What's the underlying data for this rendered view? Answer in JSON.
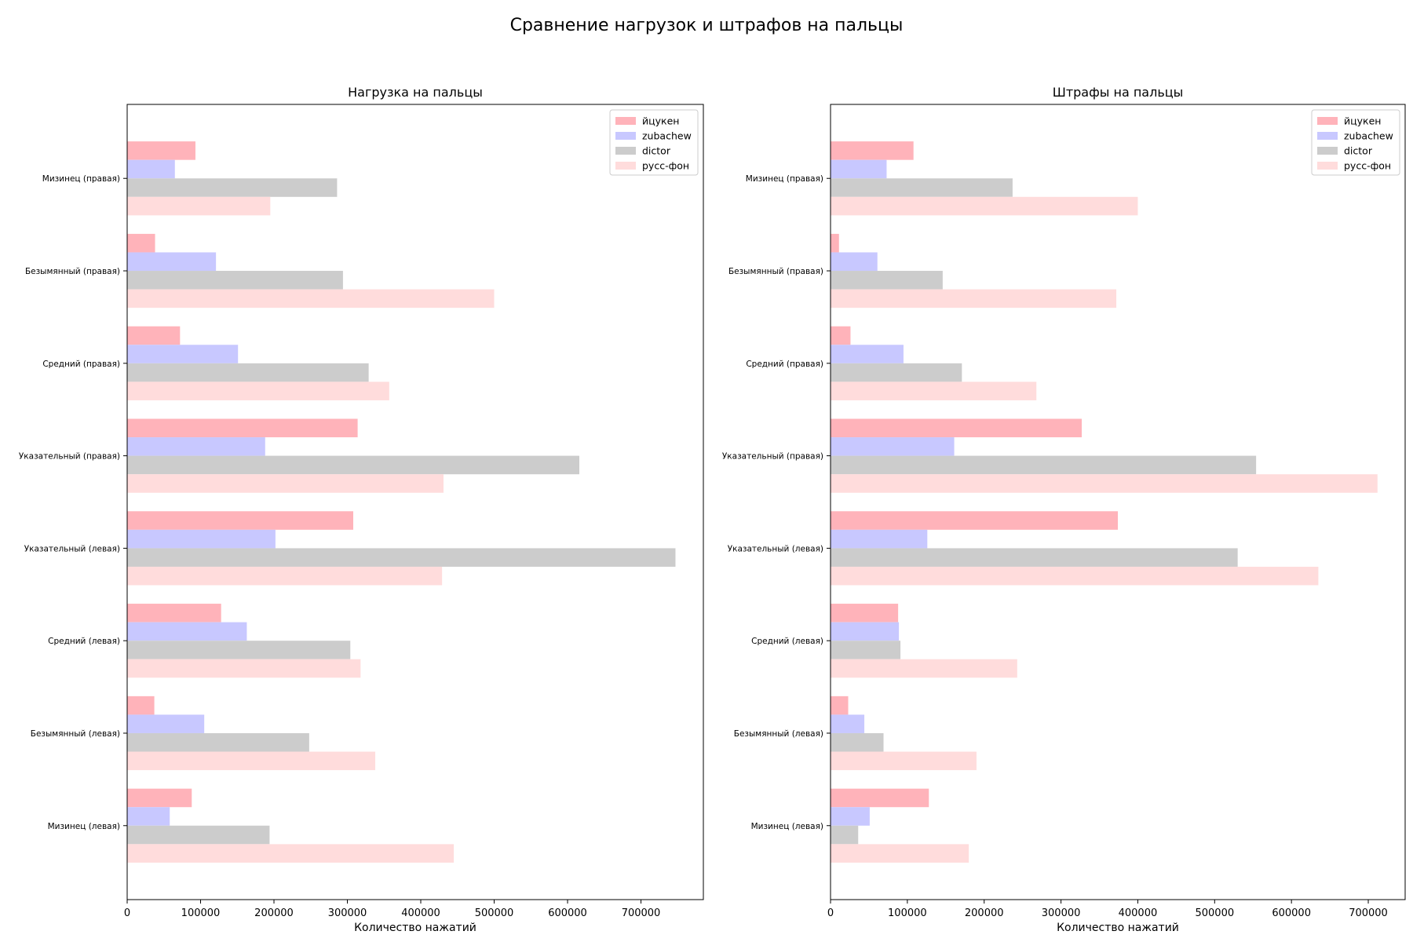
{
  "suptitle": "Сравнение нагрузок и штрафов на пальцы",
  "chart_data": [
    {
      "type": "bar",
      "orientation": "horizontal",
      "title": "Нагрузка на пальцы",
      "xlabel": "Количество нажатий",
      "ylabel": "",
      "xlim": [
        0,
        785000
      ],
      "xticks": [
        0,
        100000,
        200000,
        300000,
        400000,
        500000,
        600000,
        700000
      ],
      "grid": false,
      "legend": "top-right",
      "categories": [
        "Мизинец (левая)",
        "Безымянный (левая)",
        "Средний (левая)",
        "Указательный (левая)",
        "Указательный (правая)",
        "Средний (правая)",
        "Безымянный (правая)",
        "Мизинец (правая)"
      ],
      "series": [
        {
          "name": "йцукен",
          "color": "#ffb3ba",
          "values": [
            88000,
            37000,
            128000,
            308000,
            314000,
            72000,
            38000,
            93000
          ]
        },
        {
          "name": "zubachew",
          "color": "#c8c8ff",
          "values": [
            58000,
            105000,
            163000,
            202000,
            188000,
            151000,
            121000,
            65000
          ]
        },
        {
          "name": "dictor",
          "color": "#cccccc",
          "values": [
            194000,
            248000,
            304000,
            747000,
            616000,
            329000,
            294000,
            286000
          ]
        },
        {
          "name": "русс-фон",
          "color": "#ffdcdc",
          "values": [
            445000,
            338000,
            318000,
            429000,
            431000,
            357000,
            500000,
            195000
          ]
        }
      ]
    },
    {
      "type": "bar",
      "orientation": "horizontal",
      "title": "Штрафы на пальцы",
      "xlabel": "Количество нажатий",
      "ylabel": "",
      "xlim": [
        0,
        748000
      ],
      "xticks": [
        0,
        100000,
        200000,
        300000,
        400000,
        500000,
        600000,
        700000
      ],
      "grid": false,
      "legend": "top-right",
      "categories": [
        "Мизинец (левая)",
        "Безымянный (левая)",
        "Средний (левая)",
        "Указательный (левая)",
        "Указательный (правая)",
        "Средний (правая)",
        "Безымянный (правая)",
        "Мизинец (правая)"
      ],
      "series": [
        {
          "name": "йцукен",
          "color": "#ffb3ba",
          "values": [
            128000,
            23000,
            88000,
            374000,
            327000,
            26000,
            11000,
            108000
          ]
        },
        {
          "name": "zubachew",
          "color": "#c8c8ff",
          "values": [
            51000,
            44000,
            89000,
            126000,
            161000,
            95000,
            61000,
            73000
          ]
        },
        {
          "name": "dictor",
          "color": "#cccccc",
          "values": [
            36000,
            69000,
            91000,
            530000,
            554000,
            171000,
            146000,
            237000
          ]
        },
        {
          "name": "русс-фон",
          "color": "#ffdcdc",
          "values": [
            180000,
            190000,
            243000,
            635000,
            712000,
            268000,
            372000,
            400000
          ]
        }
      ]
    }
  ]
}
